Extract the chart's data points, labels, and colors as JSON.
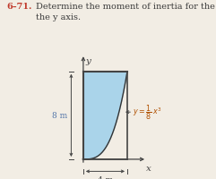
{
  "title_number": "6–71.",
  "title_number_color": "#c0392b",
  "title_text": "Determine the moment of inertia for the area about\nthe y axis.",
  "title_text_color": "#3a3a3a",
  "title_fontsize": 7.0,
  "bg_color": "#f2ede4",
  "fill_color": "#aad4ea",
  "fill_alpha": 1.0,
  "x_max": 4,
  "y_max": 8,
  "label_8m": "8 m",
  "label_4m": "4 m",
  "axis_color": "#444444",
  "label_fontsize": 6.5,
  "dim_color": "#444444",
  "curve_color": "#333333",
  "border_color": "#444444"
}
